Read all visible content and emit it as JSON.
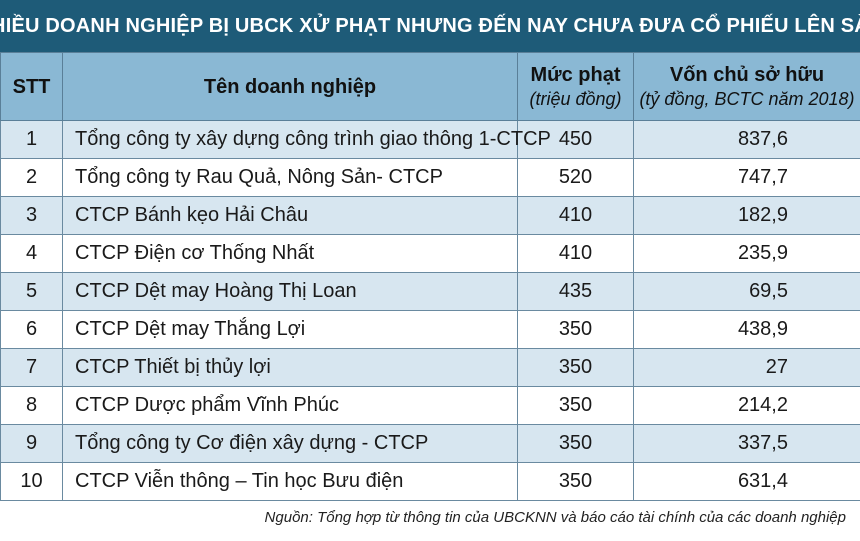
{
  "title": "NHIỀU DOANH NGHIỆP BỊ UBCK XỬ PHẠT NHƯNG ĐẾN NAY CHƯA ĐƯA CỔ PHIẾU LÊN SÀN",
  "colors": {
    "title_bg": "#1e5b78",
    "header_bg": "#8ab8d4",
    "row_stripe": "#d7e6f0"
  },
  "headers": {
    "stt": "STT",
    "name": "Tên doanh nghiệp",
    "fine": "Mức phạt",
    "fine_unit": "(triệu đồng)",
    "capital": "Vốn chủ sở hữu",
    "capital_unit": "(tỷ đồng, BCTC năm 2018)"
  },
  "rows": [
    {
      "stt": "1",
      "name": "Tổng công ty xây dựng công trình giao thông 1-CTCP",
      "fine": "450",
      "capital": "837,6"
    },
    {
      "stt": "2",
      "name": "Tổng công ty Rau Quả, Nông Sản- CTCP",
      "fine": "520",
      "capital": "747,7"
    },
    {
      "stt": "3",
      "name": "CTCP Bánh kẹo Hải Châu",
      "fine": "410",
      "capital": "182,9"
    },
    {
      "stt": "4",
      "name": "CTCP Điện cơ Thống Nhất",
      "fine": "410",
      "capital": "235,9"
    },
    {
      "stt": "5",
      "name": "CTCP Dệt may Hoàng Thị Loan",
      "fine": "435",
      "capital": "69,5"
    },
    {
      "stt": "6",
      "name": "CTCP Dệt may Thắng Lợi",
      "fine": "350",
      "capital": "438,9"
    },
    {
      "stt": "7",
      "name": "CTCP Thiết bị thủy lợi",
      "fine": "350",
      "capital": "27"
    },
    {
      "stt": "8",
      "name": "CTCP Dược phẩm Vĩnh Phúc",
      "fine": "350",
      "capital": "214,2"
    },
    {
      "stt": "9",
      "name": "Tổng công ty Cơ điện xây dựng - CTCP",
      "fine": "350",
      "capital": "337,5"
    },
    {
      "stt": "10",
      "name": "CTCP Viễn thông – Tin học Bưu điện",
      "fine": "350",
      "capital": "631,4"
    }
  ],
  "source": "Nguồn: Tổng hợp từ thông tin của UBCKNN và báo cáo tài chính của các doanh nghiệp"
}
